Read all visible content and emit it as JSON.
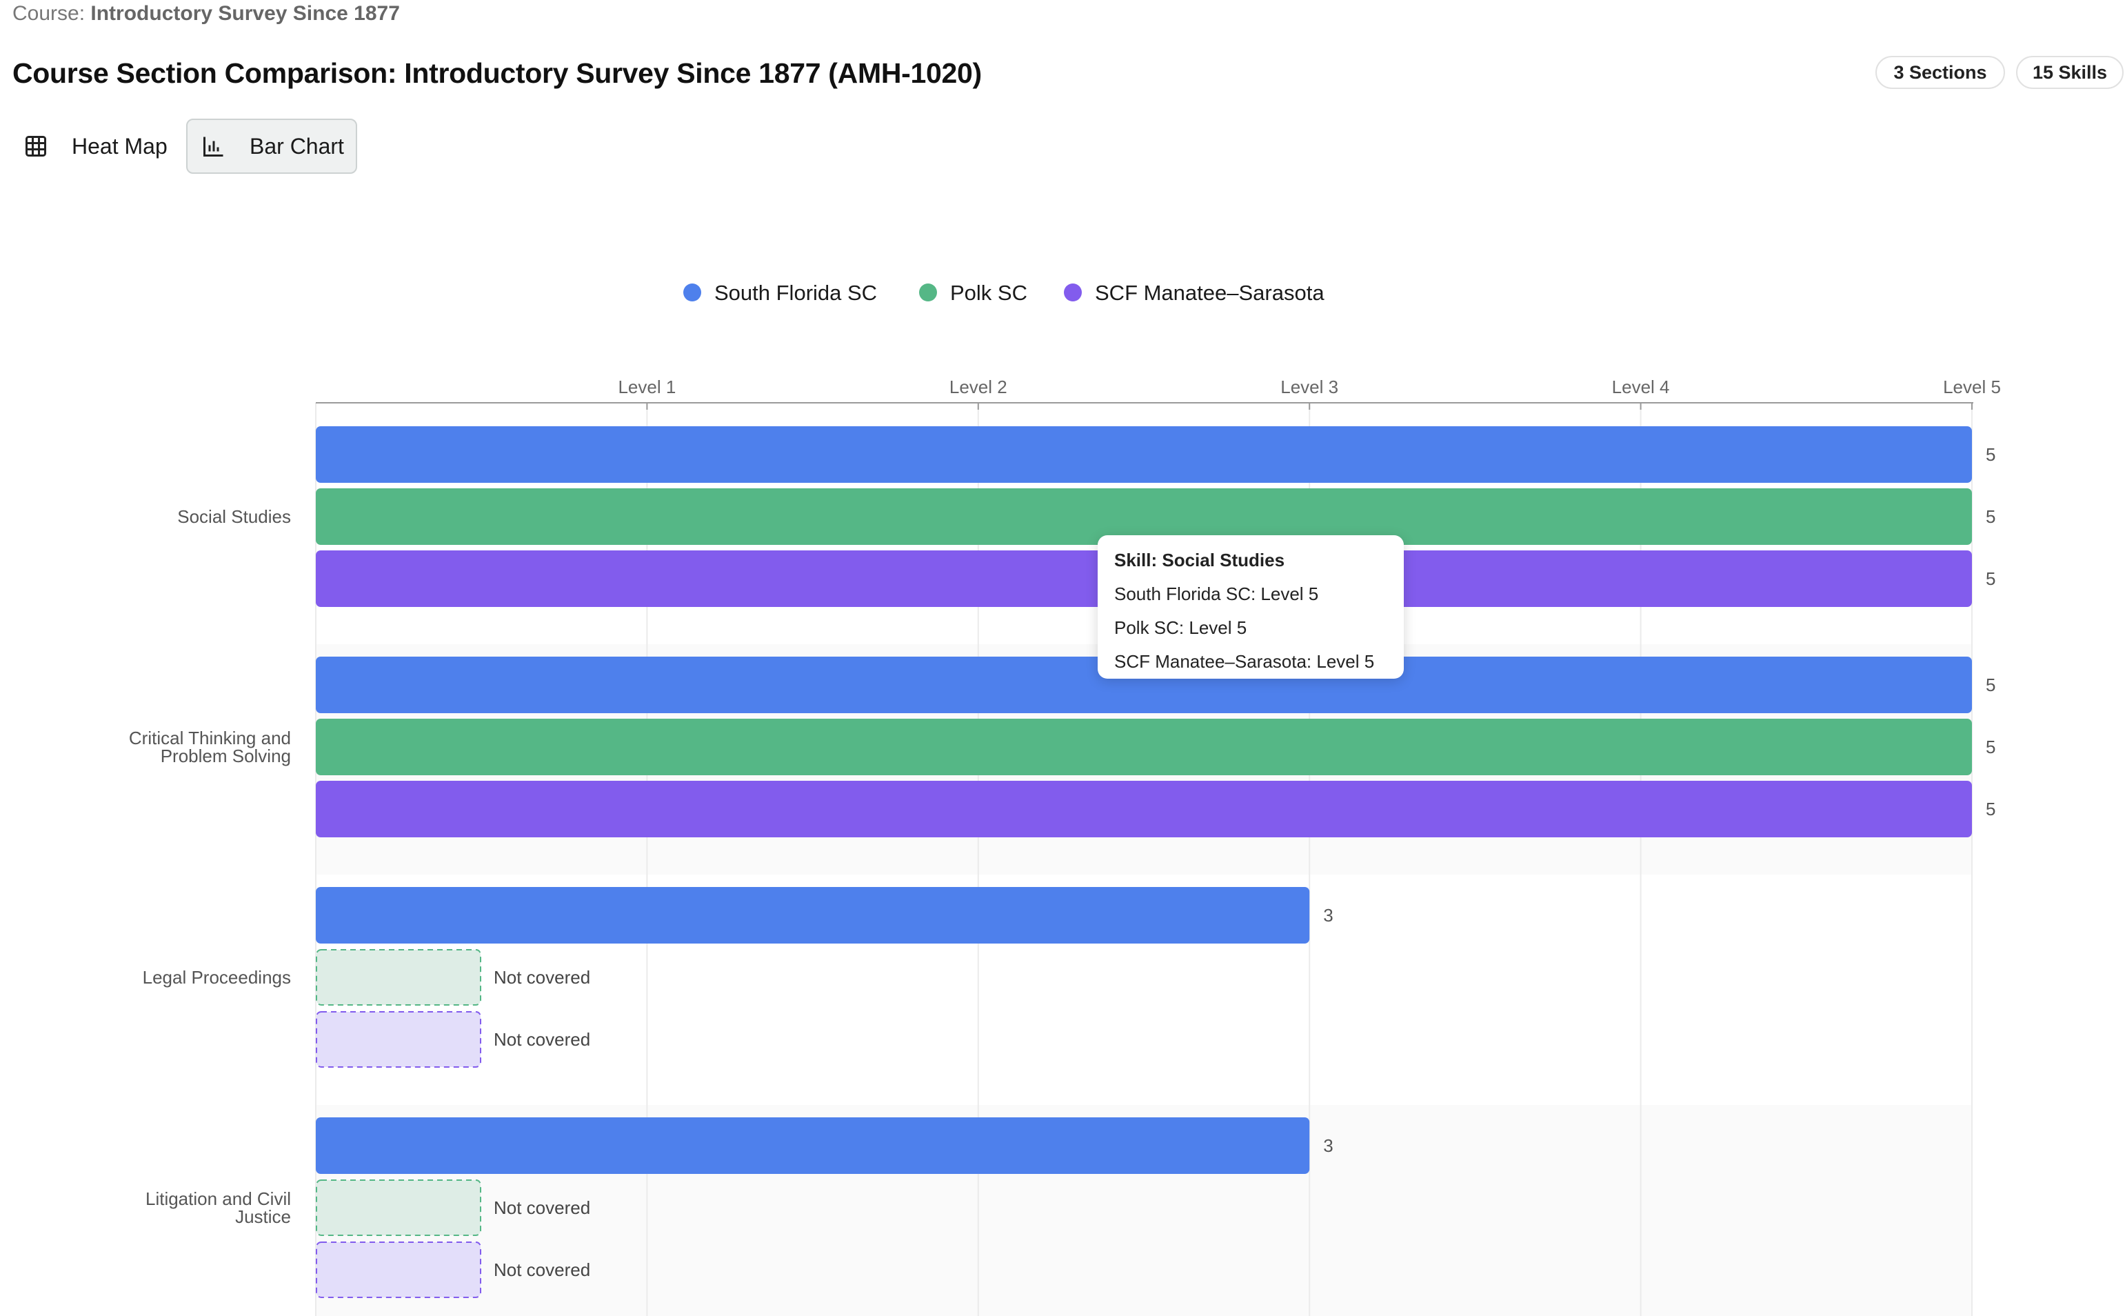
{
  "breadcrumb": {
    "label": "Course:",
    "value": "Introductory Survey Since 1877"
  },
  "page_title": "Course Section Comparison: Introductory Survey Since 1877 (AMH-1020)",
  "badges": {
    "sections": "3 Sections",
    "skills": "15 Skills"
  },
  "view_toggle": {
    "heatmap_label": "Heat Map",
    "barchart_label": "Bar Chart",
    "active": "Bar Chart",
    "heatmap_icon": "grid-icon",
    "barchart_icon": "bar-chart-icon"
  },
  "tooltip": {
    "title": "Skill: Social Studies",
    "lines": [
      "South Florida SC: Level 5",
      "Polk SC: Level 5",
      "SCF Manatee–Sarasota: Level 5"
    ]
  },
  "chart_data": {
    "type": "bar",
    "orientation": "horizontal",
    "title": "",
    "xlabel": "",
    "ylabel": "",
    "xlim": [
      0,
      5
    ],
    "x_ticks": [
      "Level 1",
      "Level 2",
      "Level 3",
      "Level 4",
      "Level 5"
    ],
    "x_axis_position": "top",
    "grid": true,
    "legend_position": "top-center",
    "not_covered_label": "Not covered",
    "categories": [
      "Social Studies",
      "Critical Thinking and Problem Solving",
      "Legal Proceedings",
      "Litigation and Civil Justice"
    ],
    "series": [
      {
        "name": "South Florida SC",
        "color": "#4e80ec",
        "values": [
          5,
          5,
          3,
          3
        ]
      },
      {
        "name": "Polk SC",
        "color": "#55b786",
        "values": [
          5,
          5,
          null,
          null
        ]
      },
      {
        "name": "SCF Manatee–Sarasota",
        "color": "#825ced",
        "values": [
          5,
          5,
          null,
          null
        ]
      }
    ],
    "not_covered_fill": {
      "Polk SC": "#deede6",
      "SCF Manatee–Sarasota": "#e3defa"
    }
  }
}
